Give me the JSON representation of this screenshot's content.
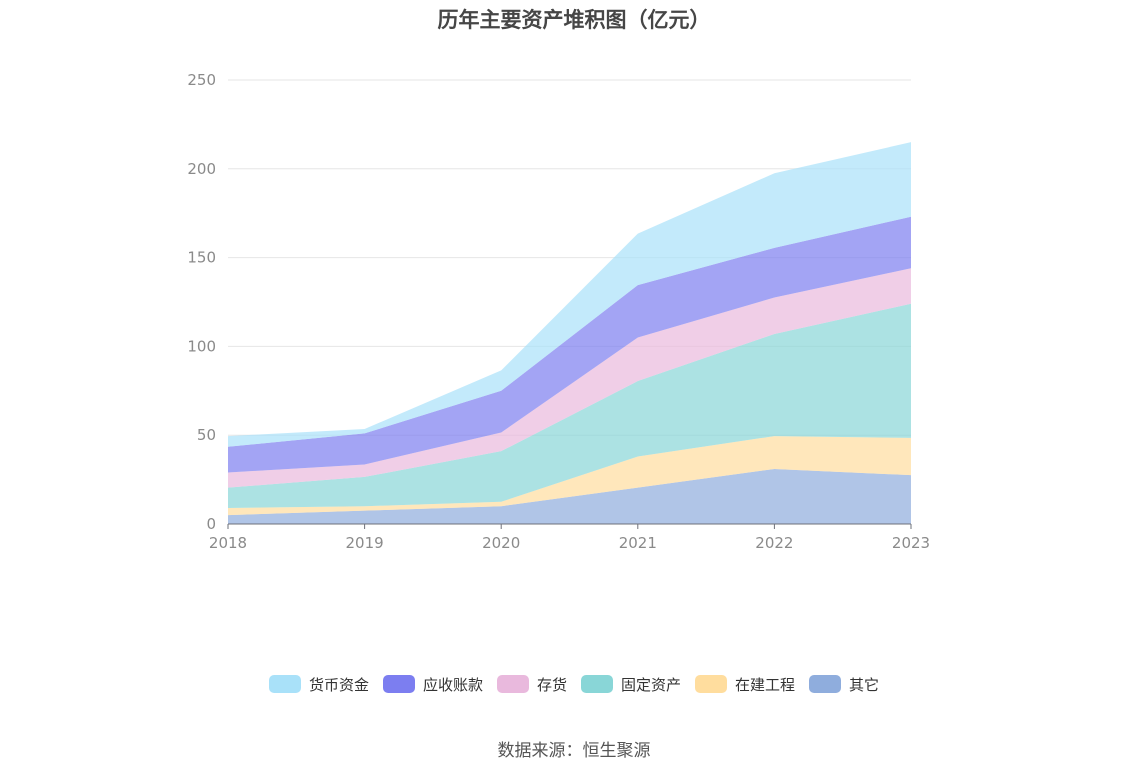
{
  "chart_data": {
    "type": "area",
    "stacked": true,
    "title": "历年主要资产堆积图（亿元）",
    "x": [
      "2018",
      "2019",
      "2020",
      "2021",
      "2022",
      "2023"
    ],
    "ylim": [
      0,
      250
    ],
    "yticks": [
      "0",
      "50",
      "100",
      "150",
      "200",
      "250"
    ],
    "grid": true,
    "legend_position": "bottom",
    "series": [
      {
        "name": "其它",
        "color": "#8faddd",
        "values": [
          5,
          7.5,
          10,
          20.5,
          31,
          27.5
        ]
      },
      {
        "name": "在建工程",
        "color": "#ffdd9e",
        "values": [
          4,
          2.5,
          2.5,
          17.5,
          18.5,
          21
        ]
      },
      {
        "name": "固定资产",
        "color": "#89d6d7",
        "values": [
          11.5,
          16.5,
          28.5,
          42.5,
          57.5,
          75.5
        ]
      },
      {
        "name": "存货",
        "color": "#e9b9dd",
        "values": [
          8.5,
          7,
          10.5,
          24.5,
          20.5,
          20
        ]
      },
      {
        "name": "应收账款",
        "color": "#7c7ef0",
        "values": [
          14.5,
          17.5,
          23.5,
          29.5,
          28,
          29
        ]
      },
      {
        "name": "货币资金",
        "color": "#a9e1f9",
        "values": [
          6,
          2.5,
          11.5,
          29,
          42,
          42
        ]
      }
    ]
  },
  "source": "数据来源：恒生聚源"
}
